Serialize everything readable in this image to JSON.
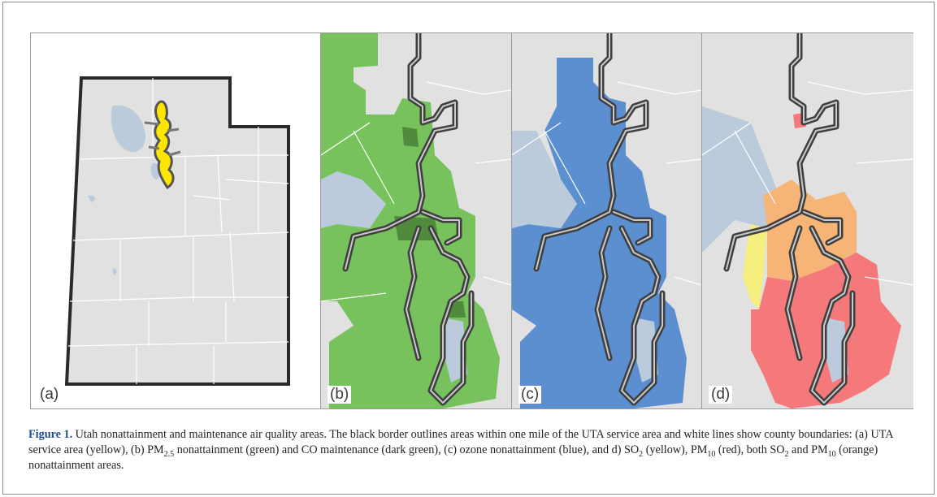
{
  "figure": {
    "panel_labels": [
      "(a)",
      "(b)",
      "(c)",
      "(d)"
    ],
    "caption": {
      "label": "Figure 1.",
      "text_1": " Utah nonattainment and maintenance air quality areas. The black border outlines areas within one mile of the UTA service area and white lines show county boundaries: (a) UTA service area (yellow), (b) PM",
      "sub_1": "2.5",
      "text_2": " nonattainment (green) and CO maintenance (dark green), (c) ozone nonattainment (blue), and d) SO",
      "sub_2": "2",
      "text_3": " (yellow), PM",
      "sub_3": "10",
      "text_4": " (red), both SO",
      "sub_4": "2",
      "text_5": " and PM",
      "sub_5": "10",
      "text_6": " (orange) nonattainment areas."
    }
  },
  "colors": {
    "state_fill": "#e1e1e1",
    "lake": "#bccbdc",
    "uta_yellow": "#ffe600",
    "pm25_green": "#77c25c",
    "co_dark_green": "#4f8a3d",
    "ozone_blue": "#5b8fcf",
    "so2_yellow": "#f4ef7e",
    "pm10_red": "#f5797b",
    "both_orange": "#f6b477",
    "uta_border": "#444444"
  }
}
